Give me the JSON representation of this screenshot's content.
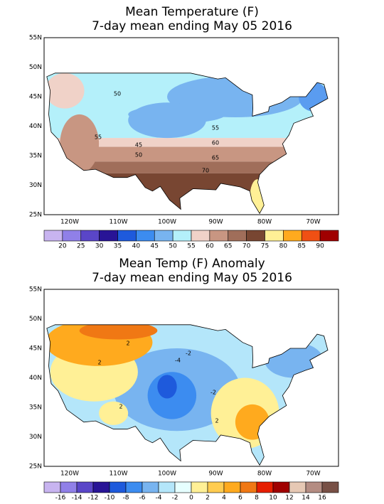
{
  "panels": [
    {
      "title_lines": [
        "Mean Temperature (F)",
        "7-day mean ending May 05 2016"
      ],
      "lat_labels": [
        "55N",
        "50N",
        "45N",
        "40N",
        "35N",
        "30N",
        "25N"
      ],
      "lon_labels": [
        "120W",
        "110W",
        "100W",
        "90W",
        "80W",
        "70W"
      ],
      "colorbar_labels": [
        "20",
        "25",
        "30",
        "35",
        "40",
        "45",
        "50",
        "55",
        "60",
        "65",
        "70",
        "75",
        "80",
        "85",
        "90"
      ],
      "contour_labels": [
        "50",
        "55",
        "45",
        "50",
        "55",
        "60",
        "65",
        "70"
      ]
    },
    {
      "title_lines": [
        "Mean Temp (F) Anomaly",
        "7-day mean ending May 05 2016"
      ],
      "lat_labels": [
        "55N",
        "50N",
        "45N",
        "40N",
        "35N",
        "30N",
        "25N"
      ],
      "lon_labels": [
        "120W",
        "110W",
        "100W",
        "90W",
        "80W",
        "70W"
      ],
      "colorbar_labels": [
        "-16",
        "-14",
        "-12",
        "-10",
        "-8",
        "-6",
        "-4",
        "-2",
        "0",
        "2",
        "4",
        "6",
        "8",
        "10",
        "12",
        "14",
        "16"
      ],
      "contour_labels": [
        "2",
        "-2",
        "-4",
        "2",
        "-2",
        "2",
        "2"
      ]
    }
  ]
}
